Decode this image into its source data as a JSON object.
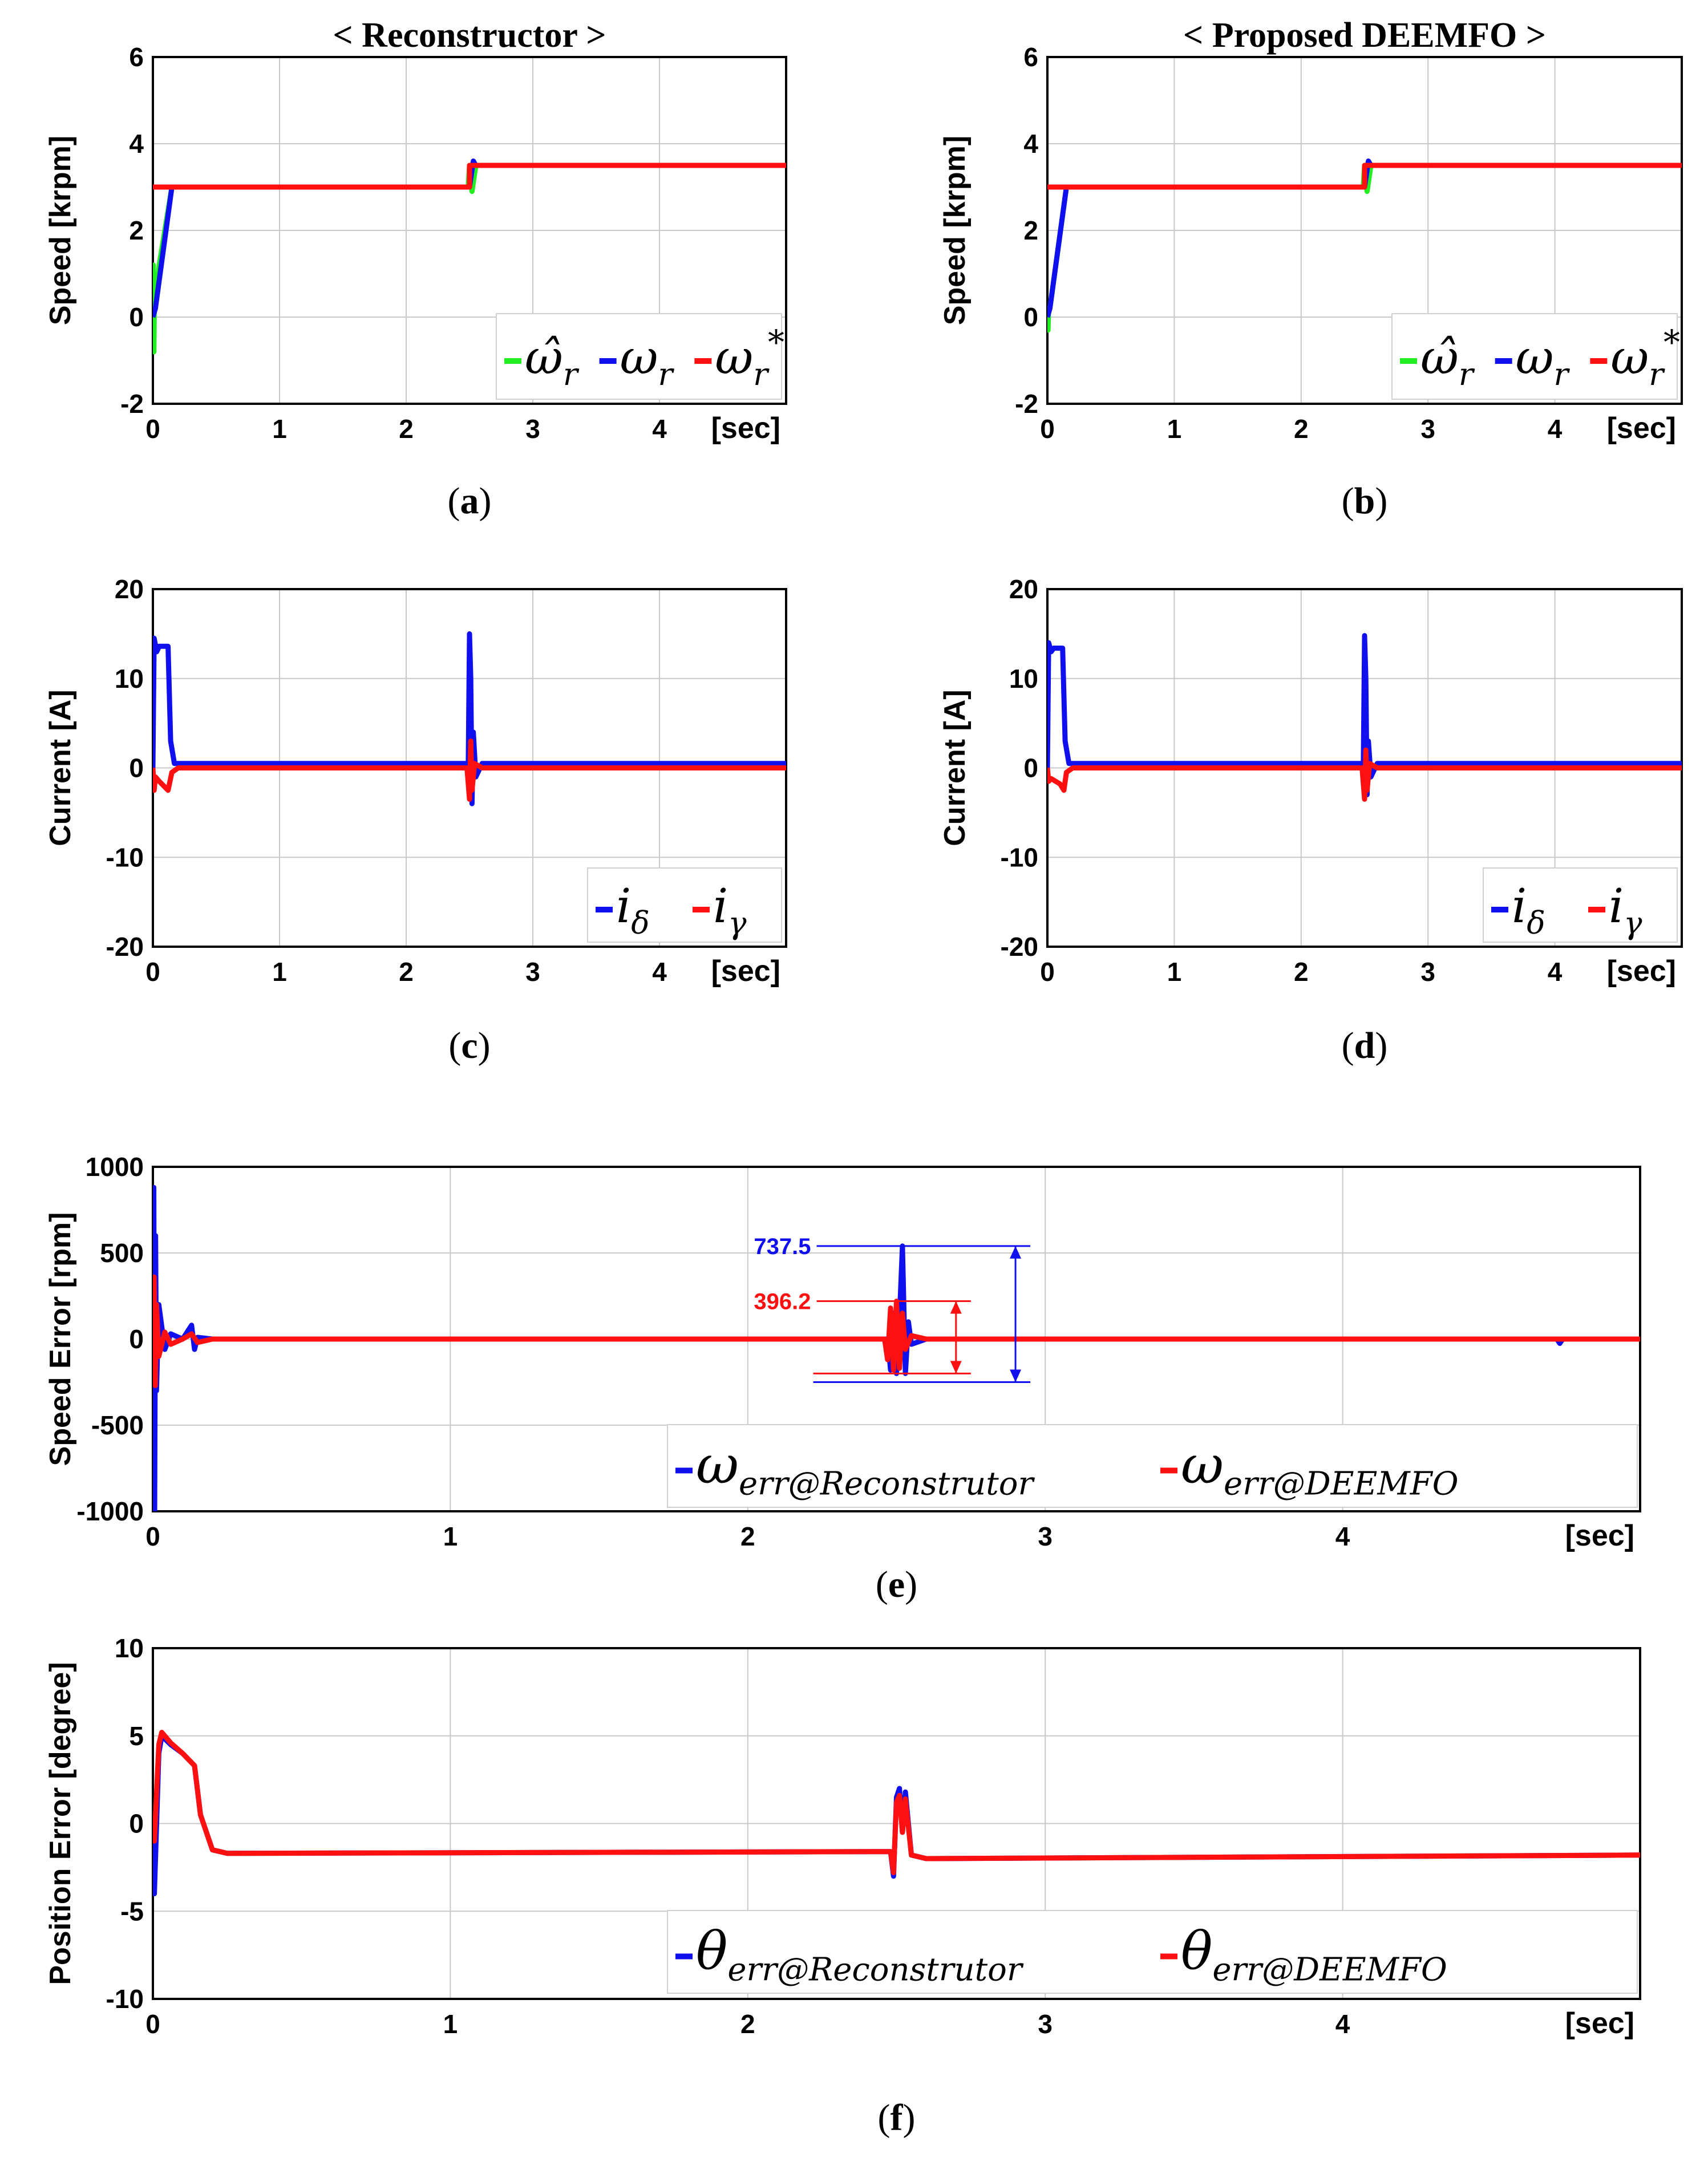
{
  "colors": {
    "green": "#22ee22",
    "blue": "#1010ee",
    "red": "#ff1010"
  },
  "chart_data": [
    {
      "id": "a",
      "type": "line",
      "title": "< Reconstructor >",
      "caption": "a",
      "ylabel": "Speed [krpm]",
      "xunit": "[sec]",
      "xlim": [
        0,
        5
      ],
      "ylim": [
        -2,
        6
      ],
      "xticks": [
        0,
        1,
        2,
        3,
        4
      ],
      "yticks": [
        -2,
        0,
        2,
        4,
        6
      ],
      "legend": [
        "ω̂r",
        "ωr",
        "ωr*"
      ],
      "series": [
        {
          "name": "ω̂r",
          "color": "green",
          "x": [
            0,
            0.003,
            0.008,
            0.012,
            0.02,
            0.05,
            0.15,
            2.49,
            2.5,
            2.52,
            2.55,
            5
          ],
          "y": [
            0,
            1.2,
            -0.8,
            0.6,
            0.3,
            1.2,
            3,
            3,
            3.5,
            2.9,
            3.5,
            3.5
          ]
        },
        {
          "name": "ωr",
          "color": "blue",
          "x": [
            0,
            0.02,
            0.15,
            2.5,
            2.53,
            2.55,
            5
          ],
          "y": [
            0,
            0.2,
            3,
            3,
            3.6,
            3.5,
            3.5
          ]
        },
        {
          "name": "ωr*",
          "color": "red",
          "x": [
            0,
            2.5,
            2.5,
            5
          ],
          "y": [
            3,
            3,
            3.5,
            3.5
          ]
        }
      ]
    },
    {
      "id": "b",
      "type": "line",
      "title": "< Proposed DEEMFO >",
      "caption": "b",
      "ylabel": "Speed [krpm]",
      "xunit": "[sec]",
      "xlim": [
        0,
        5
      ],
      "ylim": [
        -2,
        6
      ],
      "xticks": [
        0,
        1,
        2,
        3,
        4
      ],
      "yticks": [
        -2,
        0,
        2,
        4,
        6
      ],
      "legend": [
        "ω̂r",
        "ωr",
        "ωr*"
      ],
      "series": [
        {
          "name": "ω̂r",
          "color": "green",
          "x": [
            0,
            0.005,
            0.01,
            0.02,
            0.15,
            2.49,
            2.5,
            2.52,
            2.55,
            5
          ],
          "y": [
            0,
            -0.3,
            0.2,
            0.2,
            3,
            3,
            3.5,
            2.9,
            3.5,
            3.5
          ]
        },
        {
          "name": "ωr",
          "color": "blue",
          "x": [
            0,
            0.02,
            0.15,
            2.5,
            2.53,
            2.55,
            5
          ],
          "y": [
            0,
            0.2,
            3,
            3,
            3.6,
            3.5,
            3.5
          ]
        },
        {
          "name": "ωr*",
          "color": "red",
          "x": [
            0,
            2.5,
            2.5,
            5
          ],
          "y": [
            3,
            3,
            3.5,
            3.5
          ]
        }
      ]
    },
    {
      "id": "c",
      "type": "line",
      "title": "",
      "caption": "c",
      "ylabel": "Current [A]",
      "xunit": "[sec]",
      "xlim": [
        0,
        5
      ],
      "ylim": [
        -20,
        20
      ],
      "xticks": [
        0,
        1,
        2,
        3,
        4
      ],
      "yticks": [
        -20,
        -10,
        0,
        10,
        20
      ],
      "legend": [
        "iδ",
        "iγ"
      ],
      "series": [
        {
          "name": "iδ",
          "color": "blue",
          "x": [
            0,
            0.01,
            0.03,
            0.05,
            0.12,
            0.14,
            0.17,
            0.3,
            2.48,
            2.49,
            2.5,
            2.51,
            2.52,
            2.53,
            2.55,
            2.6,
            5
          ],
          "y": [
            0,
            14.5,
            13,
            13.6,
            13.6,
            3,
            0.5,
            0.5,
            0.5,
            0,
            15,
            10,
            -4,
            4,
            -1,
            0.5,
            0.5
          ]
        },
        {
          "name": "iγ",
          "color": "red",
          "x": [
            0,
            0.01,
            0.02,
            0.05,
            0.12,
            0.15,
            0.2,
            2.48,
            2.5,
            2.51,
            2.52,
            2.54,
            2.6,
            5
          ],
          "y": [
            0,
            -2.5,
            -1,
            -1.5,
            -2.5,
            -0.5,
            0,
            0,
            -3.5,
            3,
            -2.5,
            0.5,
            0,
            0
          ]
        }
      ]
    },
    {
      "id": "d",
      "type": "line",
      "title": "",
      "caption": "d",
      "ylabel": "Current [A]",
      "xunit": "[sec]",
      "xlim": [
        0,
        5
      ],
      "ylim": [
        -20,
        20
      ],
      "xticks": [
        0,
        1,
        2,
        3,
        4
      ],
      "yticks": [
        -20,
        -10,
        0,
        10,
        20
      ],
      "legend": [
        "iδ",
        "iγ"
      ],
      "series": [
        {
          "name": "iδ",
          "color": "blue",
          "x": [
            0,
            0.01,
            0.03,
            0.05,
            0.12,
            0.14,
            0.17,
            0.3,
            2.48,
            2.49,
            2.5,
            2.51,
            2.52,
            2.53,
            2.55,
            2.6,
            5
          ],
          "y": [
            0,
            14,
            13,
            13.4,
            13.4,
            3,
            0.5,
            0.5,
            0.5,
            0,
            14.8,
            10,
            -3,
            3,
            -1,
            0.5,
            0.5
          ]
        },
        {
          "name": "iγ",
          "color": "red",
          "x": [
            0,
            0.01,
            0.03,
            0.1,
            0.13,
            0.15,
            0.2,
            2.48,
            2.5,
            2.51,
            2.52,
            2.54,
            2.6,
            5
          ],
          "y": [
            0,
            -1.5,
            -1.2,
            -1.8,
            -2.5,
            -0.5,
            0,
            0,
            -3.5,
            2,
            -2.5,
            0.5,
            0,
            0
          ]
        }
      ]
    },
    {
      "id": "e",
      "type": "line",
      "title": "",
      "caption": "e",
      "ylabel": "Speed Error [rpm]",
      "xunit": "[sec]",
      "xlim": [
        0,
        5
      ],
      "ylim": [
        -1000,
        1000
      ],
      "xticks": [
        0,
        1,
        2,
        3,
        4
      ],
      "yticks": [
        -1000,
        -500,
        0,
        500,
        1000
      ],
      "legend": [
        "ωerr@Reconstrutor",
        "ωerr@DEEMFO"
      ],
      "annotations": [
        {
          "text": "737.5",
          "color": "blue",
          "x": 2.5,
          "y": 540
        },
        {
          "text": "396.2",
          "color": "red",
          "x": 2.5,
          "y": 220
        }
      ],
      "series": [
        {
          "name": "ωerr@Reconstrutor",
          "color": "blue",
          "x": [
            0,
            0.003,
            0.006,
            0.009,
            0.012,
            0.02,
            0.04,
            0.06,
            0.1,
            0.13,
            0.14,
            0.15,
            0.2,
            2.47,
            2.48,
            2.49,
            2.5,
            2.51,
            2.52,
            2.53,
            2.54,
            2.55,
            2.6,
            4.72,
            4.73,
            4.74,
            5
          ],
          "y": [
            0,
            880,
            -1000,
            600,
            -300,
            200,
            -60,
            30,
            0,
            80,
            -60,
            10,
            0,
            0,
            -180,
            150,
            -200,
            120,
            540,
            -200,
            100,
            -30,
            0,
            0,
            -25,
            0,
            0
          ]
        },
        {
          "name": "ωerr@DEEMFO",
          "color": "red",
          "x": [
            0,
            0.004,
            0.008,
            0.012,
            0.02,
            0.04,
            0.06,
            0.1,
            0.13,
            0.15,
            0.2,
            2.46,
            2.47,
            2.48,
            2.49,
            2.5,
            2.51,
            2.52,
            2.53,
            2.55,
            2.6,
            5
          ],
          "y": [
            0,
            360,
            -270,
            200,
            -100,
            40,
            -30,
            0,
            30,
            -20,
            0,
            0,
            -120,
            180,
            -180,
            220,
            -170,
            150,
            -60,
            20,
            0,
            0
          ]
        }
      ]
    },
    {
      "id": "f",
      "type": "line",
      "title": "",
      "caption": "f",
      "ylabel": "Position Error [degree]",
      "xunit": "[sec]",
      "xlim": [
        0,
        5
      ],
      "ylim": [
        -10,
        10
      ],
      "xticks": [
        0,
        1,
        2,
        3,
        4
      ],
      "yticks": [
        -10,
        -5,
        0,
        5,
        10
      ],
      "legend": [
        "θerr@Reconstrutor",
        "θerr@DEEMFO"
      ],
      "series": [
        {
          "name": "θerr@Reconstrutor",
          "color": "blue",
          "x": [
            0,
            0.005,
            0.02,
            0.03,
            0.06,
            0.1,
            0.14,
            0.16,
            0.2,
            0.25,
            2.48,
            2.49,
            2.5,
            2.51,
            2.52,
            2.53,
            2.55,
            2.6,
            5
          ],
          "y": [
            -1,
            -4,
            4,
            5,
            4.5,
            4,
            3.3,
            0.5,
            -1.5,
            -1.7,
            -1.6,
            -3,
            1.5,
            2,
            -0.5,
            1.8,
            -1.8,
            -2,
            -1.8
          ]
        },
        {
          "name": "θerr@DEEMFO",
          "color": "red",
          "x": [
            0,
            0.005,
            0.02,
            0.03,
            0.06,
            0.1,
            0.14,
            0.16,
            0.2,
            0.25,
            2.48,
            2.49,
            2.5,
            2.51,
            2.52,
            2.53,
            2.55,
            2.6,
            5
          ],
          "y": [
            0,
            -1,
            4.5,
            5.2,
            4.6,
            4,
            3.3,
            0.5,
            -1.5,
            -1.7,
            -1.6,
            -2.8,
            1.2,
            1.6,
            -0.5,
            1.4,
            -1.8,
            -2,
            -1.8
          ]
        }
      ]
    }
  ]
}
